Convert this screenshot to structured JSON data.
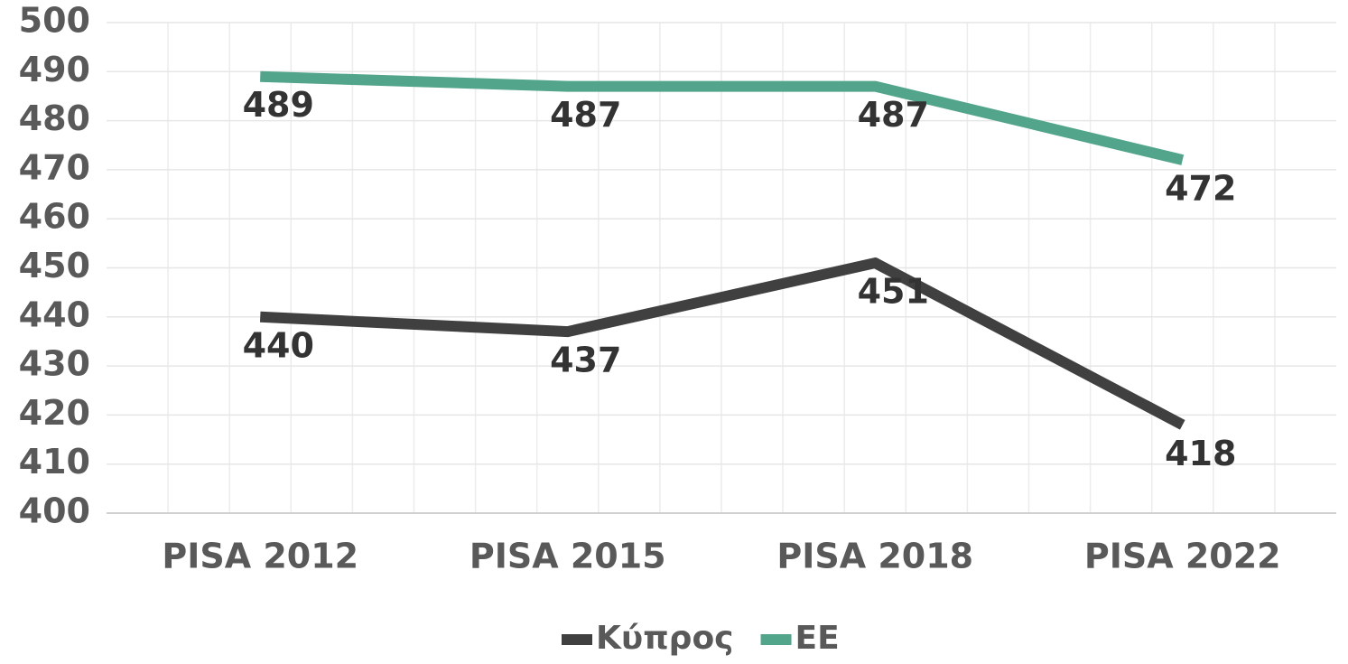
{
  "chart_data": {
    "type": "line",
    "categories": [
      "PISA 2012",
      "PISA 2015",
      "PISA 2018",
      "PISA 2022"
    ],
    "series": [
      {
        "name": "Κύπρος",
        "color": "#404040",
        "values": [
          440,
          437,
          451,
          418
        ]
      },
      {
        "name": "EE",
        "color": "#52a58b",
        "values": [
          489,
          487,
          487,
          472
        ]
      }
    ],
    "ylim": [
      400,
      500
    ],
    "yticks": [
      400,
      410,
      420,
      430,
      440,
      450,
      460,
      470,
      480,
      490,
      500
    ],
    "grid": true,
    "legend": "bottom"
  }
}
